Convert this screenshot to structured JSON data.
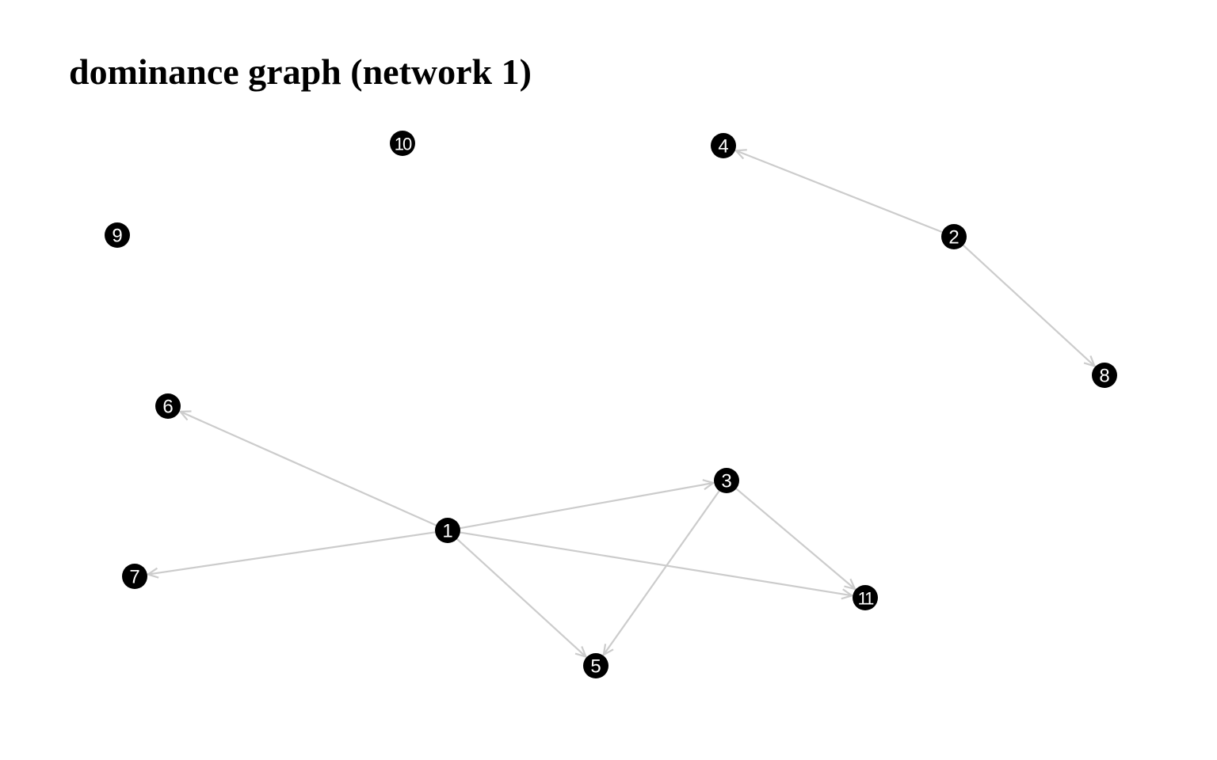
{
  "title": "dominance graph (network 1)",
  "colors": {
    "node_fill": "#000000",
    "node_label": "#ffffff",
    "edge": "#cccccc"
  },
  "nodes": [
    "1",
    "2",
    "3",
    "4",
    "5",
    "6",
    "7",
    "8",
    "9",
    "10",
    "11"
  ],
  "edges": [
    {
      "from": "1",
      "to": "6"
    },
    {
      "from": "1",
      "to": "7"
    },
    {
      "from": "1",
      "to": "3"
    },
    {
      "from": "1",
      "to": "5"
    },
    {
      "from": "1",
      "to": "11"
    },
    {
      "from": "3",
      "to": "5"
    },
    {
      "from": "3",
      "to": "11"
    },
    {
      "from": "2",
      "to": "4"
    },
    {
      "from": "2",
      "to": "8"
    }
  ]
}
